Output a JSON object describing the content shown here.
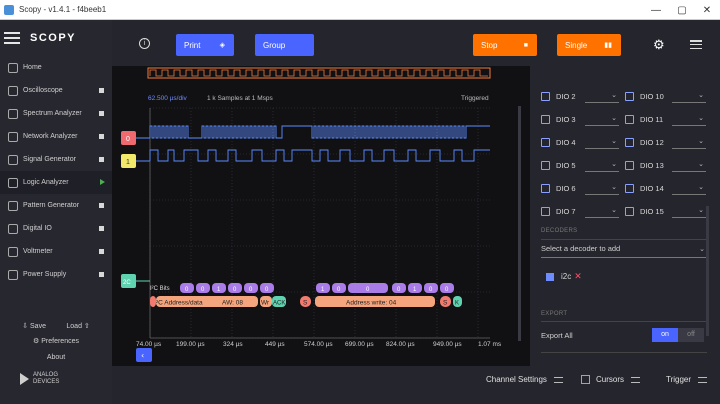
{
  "window": {
    "title": "Scopy - v1.4.1 - f4beeb1",
    "min": "—",
    "max": "▢",
    "close": "✕"
  },
  "app": {
    "logo": "SCOPY"
  },
  "nav": [
    {
      "label": "Home"
    },
    {
      "label": "Oscilloscope"
    },
    {
      "label": "Spectrum Analyzer"
    },
    {
      "label": "Network Analyzer"
    },
    {
      "label": "Signal Generator"
    },
    {
      "label": "Logic Analyzer"
    },
    {
      "label": "Pattern Generator"
    },
    {
      "label": "Digital IO"
    },
    {
      "label": "Voltmeter"
    },
    {
      "label": "Power Supply"
    }
  ],
  "sidebar_bottom": {
    "save": "Save",
    "load": "Load",
    "preferences": "Preferences",
    "about": "About",
    "brand_line1": "ANALOG",
    "brand_line2": "DEVICES"
  },
  "toolbar": {
    "print": "Print",
    "group": "Group",
    "stop": "Stop",
    "single": "Single"
  },
  "plot": {
    "timebase": "62.500 µs/div",
    "samples": "1 k Samples at 1 Msps",
    "status": "Triggered",
    "channel_labels": [
      "0",
      "1",
      "2C"
    ],
    "x_ticks": [
      "74.00 µs",
      "199.00 µs",
      "324 µs",
      "449 µs",
      "574.00 µs",
      "699.00 µs",
      "824.00 µs",
      "949.00 µs",
      "1.07 ms"
    ],
    "decoder_row_label": "I²C Bits",
    "bits": [
      "0",
      "0",
      "1",
      "0",
      "0",
      "0",
      "1",
      "0",
      "0",
      "0",
      "1",
      "0",
      "0"
    ],
    "d1": "²C Address/data",
    "d2": "AW: 08",
    "d3": "Wr",
    "d4": "ACK",
    "d5": "S",
    "d6": "Address write: 04",
    "d7": "S",
    "d8": "K"
  },
  "dio": [
    {
      "left": "DIO 2",
      "right": "DIO 10"
    },
    {
      "left": "DIO 3",
      "right": "DIO 11"
    },
    {
      "left": "DIO 4",
      "right": "DIO 12"
    },
    {
      "left": "DIO 5",
      "right": "DIO 13"
    },
    {
      "left": "DIO 6",
      "right": "DIO 14"
    },
    {
      "left": "DIO 7",
      "right": "DIO 15"
    }
  ],
  "decoders": {
    "heading": "DECODERS",
    "select_placeholder": "Select a decoder to add",
    "active": "i2c"
  },
  "export": {
    "heading": "EXPORT",
    "label": "Export All",
    "on": "on",
    "off": "off"
  },
  "bottombar": {
    "channel_settings": "Channel Settings",
    "cursors": "Cursors",
    "trigger": "Trigger"
  },
  "colors": {
    "accent_blue": "#4a64ff",
    "orange": "#ff7200",
    "waveform": "#5a8cff",
    "decoder_purple": "#a97ce8",
    "decoder_orange": "#f4a57d",
    "ack_green": "#5fd3b0"
  }
}
